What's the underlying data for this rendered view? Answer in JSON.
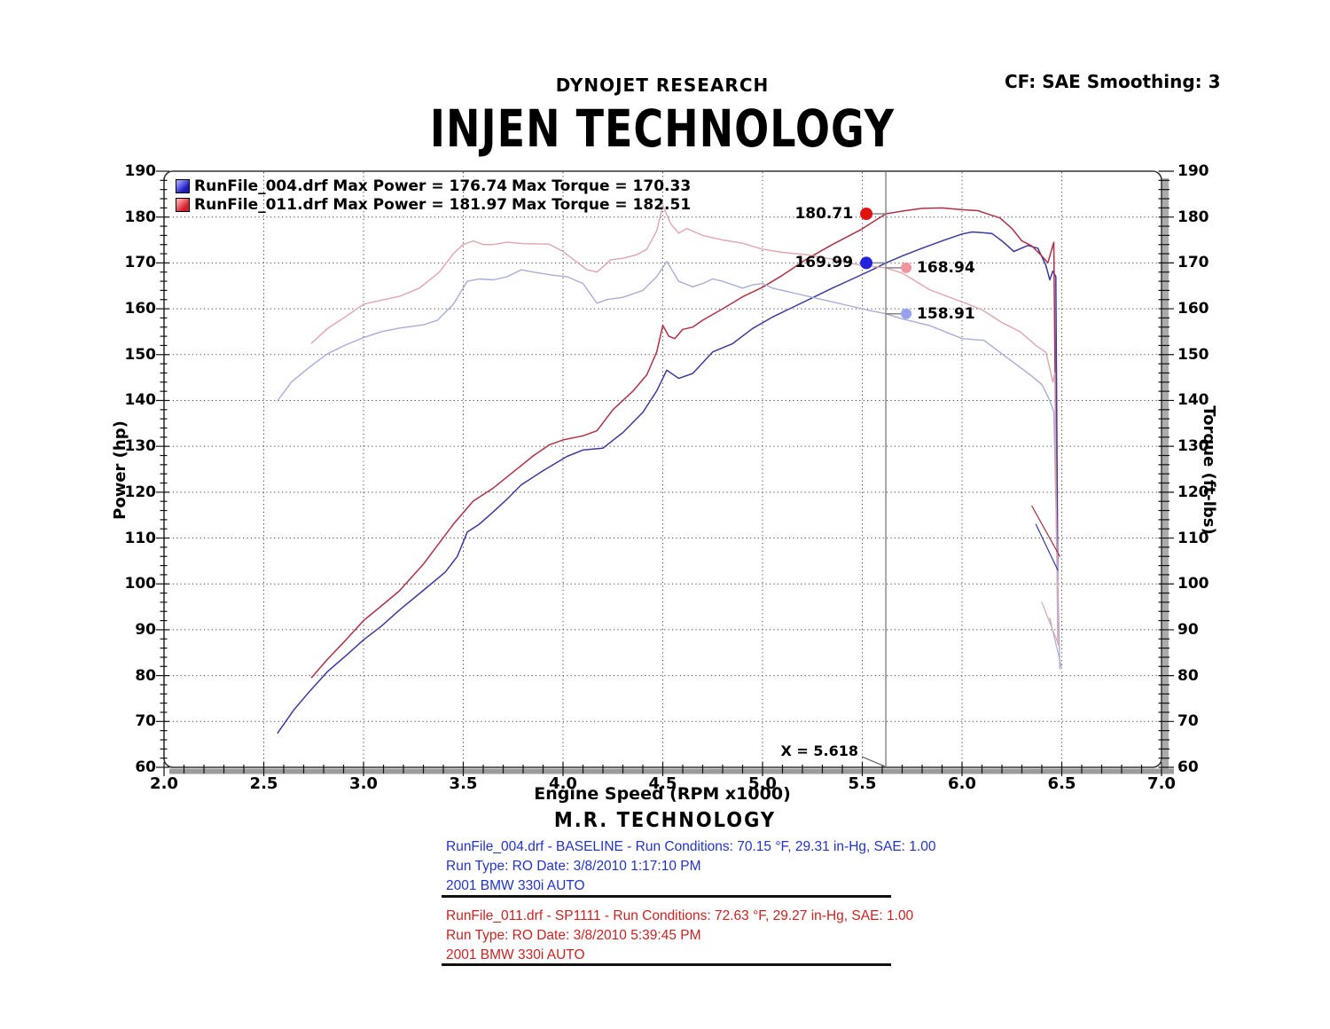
{
  "header": {
    "brand": "DYNOJET RESEARCH",
    "cf": "CF: SAE  Smoothing: 3",
    "title": "INJEN TECHNOLOGY"
  },
  "legend": {
    "rows": [
      {
        "label_left": "RunFile_004.drf Max Power = 176.74",
        "label_right": "Max Torque = 170.33",
        "swatch_from": "#9a9aff",
        "swatch_to": "#1c1cc4"
      },
      {
        "label_left": "RunFile_011.drf Max Power = 181.97",
        "label_right": "Max Torque = 182.51",
        "swatch_from": "#ffa2a2",
        "swatch_to": "#d41f2f"
      }
    ]
  },
  "cursor": {
    "label": "X = 5.618",
    "x": 5.618
  },
  "markers": [
    {
      "label": "180.71",
      "value": 180.71,
      "side": "left",
      "color": "#e01111",
      "r": 7
    },
    {
      "label": "169.99",
      "value": 169.99,
      "side": "left",
      "color": "#2222dd",
      "r": 7
    },
    {
      "label": "168.94",
      "value": 168.94,
      "side": "right",
      "color": "#f2949c",
      "r": 6
    },
    {
      "label": "158.91",
      "value": 158.91,
      "side": "right",
      "color": "#97a1ee",
      "r": 6
    }
  ],
  "footer": {
    "mr_title": "M.R. TECHNOLOGY",
    "baseline": {
      "color": "#2233cc",
      "lines": [
        "RunFile_004.drf - BASELINE  -  Run Conditions: 70.15 °F, 29.31 in-Hg, SAE: 1.00",
        "Run Type: RO  Date: 3/8/2010 1:17:10 PM",
        "2001 BMW 330i AUTO"
      ]
    },
    "modified": {
      "color": "#cc2222",
      "lines": [
        "RunFile_011.drf - SP1111  -  Run Conditions: 72.63 °F, 29.27 in-Hg, SAE: 1.00",
        "Run Type: RO  Date: 3/8/2010 5:39:45 PM",
        "2001 BMW 330i AUTO"
      ]
    }
  },
  "chart_data": {
    "type": "line",
    "title": "INJEN TECHNOLOGY",
    "xlabel": "Engine Speed (RPM x1000)",
    "ylabel_left": "Power (hp)",
    "ylabel_right": "Torque (ft-lbs)",
    "x_range": [
      2.0,
      7.0
    ],
    "y_range": [
      60,
      190
    ],
    "x_tick_labels": [
      "2.0",
      "2.5",
      "3.0",
      "3.5",
      "4.0",
      "4.5",
      "5.0",
      "5.5",
      "6.0",
      "6.5",
      "7.0"
    ],
    "y_tick_labels": [
      "60",
      "70",
      "80",
      "90",
      "100",
      "110",
      "120",
      "130",
      "140",
      "150",
      "160",
      "170",
      "180",
      "190"
    ],
    "x_minor_step": 0.1,
    "y_minor_step": 2,
    "grid": "dotted",
    "legend_position": "top-left",
    "cursor_x": 5.618,
    "series": [
      {
        "name": "power-baseline-004",
        "unit": "hp",
        "color": "#3a3aa0",
        "width": 1.5,
        "points": [
          [
            2.57,
            67.5
          ],
          [
            2.65,
            72.5
          ],
          [
            2.73,
            76.6
          ],
          [
            2.82,
            80.9
          ],
          [
            2.91,
            84.3
          ],
          [
            3.0,
            87.8
          ],
          [
            3.09,
            90.8
          ],
          [
            3.18,
            94.3
          ],
          [
            3.3,
            98.6
          ],
          [
            3.41,
            102.6
          ],
          [
            3.47,
            106.0
          ],
          [
            3.52,
            111.3
          ],
          [
            3.58,
            113.0
          ],
          [
            3.65,
            115.7
          ],
          [
            3.72,
            118.5
          ],
          [
            3.79,
            121.6
          ],
          [
            3.9,
            124.7
          ],
          [
            4.02,
            127.8
          ],
          [
            4.1,
            129.2
          ],
          [
            4.2,
            129.6
          ],
          [
            4.3,
            133.0
          ],
          [
            4.4,
            137.4
          ],
          [
            4.47,
            142.1
          ],
          [
            4.52,
            146.6
          ],
          [
            4.58,
            144.8
          ],
          [
            4.65,
            145.9
          ],
          [
            4.75,
            150.6
          ],
          [
            4.85,
            152.4
          ],
          [
            4.95,
            155.7
          ],
          [
            5.05,
            158.2
          ],
          [
            5.15,
            160.3
          ],
          [
            5.25,
            162.4
          ],
          [
            5.35,
            164.5
          ],
          [
            5.45,
            166.5
          ],
          [
            5.55,
            168.5
          ],
          [
            5.618,
            169.99
          ],
          [
            5.7,
            171.5
          ],
          [
            5.8,
            173.2
          ],
          [
            5.9,
            174.8
          ],
          [
            6.0,
            176.3
          ],
          [
            6.05,
            176.74
          ],
          [
            6.1,
            176.6
          ],
          [
            6.15,
            176.4
          ],
          [
            6.2,
            174.8
          ],
          [
            6.26,
            172.5
          ],
          [
            6.33,
            173.8
          ],
          [
            6.38,
            173.2
          ],
          [
            6.42,
            169.5
          ],
          [
            6.44,
            166.3
          ],
          [
            6.455,
            168.2
          ],
          [
            6.47,
            167.0
          ],
          [
            6.48,
            101.0
          ]
        ]
      },
      {
        "name": "power-modified-011",
        "unit": "hp",
        "color": "#b03043",
        "width": 1.5,
        "points": [
          [
            2.74,
            79.6
          ],
          [
            2.82,
            83.6
          ],
          [
            2.91,
            87.7
          ],
          [
            3.0,
            92.0
          ],
          [
            3.09,
            95.2
          ],
          [
            3.18,
            98.5
          ],
          [
            3.3,
            104.3
          ],
          [
            3.45,
            113.0
          ],
          [
            3.55,
            118.1
          ],
          [
            3.65,
            120.9
          ],
          [
            3.75,
            124.4
          ],
          [
            3.85,
            127.9
          ],
          [
            3.93,
            130.3
          ],
          [
            4.0,
            131.4
          ],
          [
            4.1,
            132.3
          ],
          [
            4.17,
            133.4
          ],
          [
            4.25,
            138.0
          ],
          [
            4.35,
            142.0
          ],
          [
            4.42,
            145.6
          ],
          [
            4.47,
            150.6
          ],
          [
            4.5,
            156.4
          ],
          [
            4.53,
            154.0
          ],
          [
            4.56,
            153.5
          ],
          [
            4.6,
            155.5
          ],
          [
            4.65,
            156.0
          ],
          [
            4.7,
            157.5
          ],
          [
            4.8,
            160.0
          ],
          [
            4.9,
            162.6
          ],
          [
            5.0,
            164.7
          ],
          [
            5.1,
            167.3
          ],
          [
            5.22,
            170.8
          ],
          [
            5.35,
            174.0
          ],
          [
            5.49,
            177.2
          ],
          [
            5.618,
            180.71
          ],
          [
            5.7,
            181.3
          ],
          [
            5.8,
            181.9
          ],
          [
            5.9,
            182.0
          ],
          [
            6.0,
            181.6
          ],
          [
            6.08,
            181.4
          ],
          [
            6.14,
            180.5
          ],
          [
            6.19,
            179.8
          ],
          [
            6.25,
            177.5
          ],
          [
            6.3,
            174.8
          ],
          [
            6.35,
            173.7
          ],
          [
            6.4,
            171.5
          ],
          [
            6.43,
            170.0
          ],
          [
            6.46,
            174.5
          ],
          [
            6.475,
            107.0
          ]
        ]
      },
      {
        "name": "torque-baseline-004",
        "unit": "ft-lbs",
        "color": "#a6aed8",
        "width": 1.4,
        "points": [
          [
            2.57,
            140.0
          ],
          [
            2.64,
            144.1
          ],
          [
            2.73,
            147.3
          ],
          [
            2.82,
            150.2
          ],
          [
            2.91,
            152.1
          ],
          [
            3.0,
            153.7
          ],
          [
            3.09,
            155.0
          ],
          [
            3.18,
            155.8
          ],
          [
            3.25,
            156.2
          ],
          [
            3.3,
            156.5
          ],
          [
            3.37,
            157.5
          ],
          [
            3.45,
            161.0
          ],
          [
            3.52,
            166.0
          ],
          [
            3.58,
            166.5
          ],
          [
            3.65,
            166.3
          ],
          [
            3.72,
            167.0
          ],
          [
            3.79,
            168.5
          ],
          [
            3.85,
            168.0
          ],
          [
            3.95,
            167.3
          ],
          [
            4.02,
            167.0
          ],
          [
            4.1,
            165.5
          ],
          [
            4.17,
            161.2
          ],
          [
            4.22,
            162.0
          ],
          [
            4.3,
            162.5
          ],
          [
            4.4,
            164.0
          ],
          [
            4.47,
            167.0
          ],
          [
            4.52,
            170.33
          ],
          [
            4.58,
            166.0
          ],
          [
            4.65,
            164.8
          ],
          [
            4.7,
            165.5
          ],
          [
            4.75,
            166.5
          ],
          [
            4.8,
            166.0
          ],
          [
            4.9,
            164.5
          ],
          [
            4.95,
            165.2
          ],
          [
            5.0,
            165.5
          ],
          [
            5.05,
            164.5
          ],
          [
            5.15,
            163.5
          ],
          [
            5.25,
            162.5
          ],
          [
            5.35,
            161.5
          ],
          [
            5.45,
            160.5
          ],
          [
            5.55,
            159.5
          ],
          [
            5.618,
            158.91
          ],
          [
            5.7,
            157.8
          ],
          [
            5.84,
            156.3
          ],
          [
            6.0,
            153.5
          ],
          [
            6.11,
            153.1
          ],
          [
            6.23,
            149.2
          ],
          [
            6.35,
            145.3
          ],
          [
            6.4,
            143.5
          ],
          [
            6.44,
            140.0
          ],
          [
            6.46,
            137.5
          ],
          [
            6.49,
            81.5
          ]
        ]
      },
      {
        "name": "torque-modified-011",
        "unit": "ft-lbs",
        "color": "#dfa6ad",
        "width": 1.4,
        "points": [
          [
            2.74,
            152.5
          ],
          [
            2.82,
            155.7
          ],
          [
            2.91,
            158.3
          ],
          [
            3.0,
            161.0
          ],
          [
            3.09,
            161.9
          ],
          [
            3.18,
            162.7
          ],
          [
            3.28,
            164.5
          ],
          [
            3.38,
            168.0
          ],
          [
            3.45,
            172.0
          ],
          [
            3.5,
            174.0
          ],
          [
            3.55,
            174.8
          ],
          [
            3.6,
            174.0
          ],
          [
            3.65,
            174.0
          ],
          [
            3.72,
            174.5
          ],
          [
            3.8,
            174.2
          ],
          [
            3.93,
            174.1
          ],
          [
            4.0,
            172.5
          ],
          [
            4.06,
            170.5
          ],
          [
            4.12,
            168.5
          ],
          [
            4.17,
            168.0
          ],
          [
            4.24,
            170.7
          ],
          [
            4.3,
            171.0
          ],
          [
            4.37,
            171.8
          ],
          [
            4.42,
            173.0
          ],
          [
            4.47,
            177.0
          ],
          [
            4.5,
            182.51
          ],
          [
            4.54,
            178.5
          ],
          [
            4.58,
            176.5
          ],
          [
            4.62,
            177.5
          ],
          [
            4.7,
            176.0
          ],
          [
            4.8,
            175.0
          ],
          [
            4.9,
            174.3
          ],
          [
            5.0,
            173.0
          ],
          [
            5.1,
            172.3
          ],
          [
            5.22,
            171.8
          ],
          [
            5.35,
            170.8
          ],
          [
            5.49,
            169.5
          ],
          [
            5.618,
            168.94
          ],
          [
            5.7,
            167.8
          ],
          [
            5.84,
            164.1
          ],
          [
            6.0,
            161.5
          ],
          [
            6.1,
            159.8
          ],
          [
            6.2,
            157.0
          ],
          [
            6.29,
            155.0
          ],
          [
            6.37,
            152.0
          ],
          [
            6.42,
            150.5
          ],
          [
            6.44,
            147.0
          ],
          [
            6.455,
            144.0
          ],
          [
            6.465,
            146.0
          ],
          [
            6.48,
            87.0
          ]
        ]
      },
      {
        "name": "power-baseline-rundown-tail",
        "unit": "hp",
        "color": "#3a3aa0",
        "width": 1.2,
        "points": [
          [
            6.37,
            113.0
          ],
          [
            6.48,
            103.0
          ]
        ]
      },
      {
        "name": "power-modified-rundown-tail",
        "unit": "hp",
        "color": "#b03043",
        "width": 1.2,
        "points": [
          [
            6.35,
            117.0
          ],
          [
            6.49,
            106.0
          ]
        ]
      },
      {
        "name": "torque-baseline-rundown-tail",
        "unit": "ft-lbs",
        "color": "#a6aed8",
        "width": 1.2,
        "points": [
          [
            6.44,
            92.5
          ],
          [
            6.5,
            81.5
          ]
        ]
      },
      {
        "name": "torque-modified-rundown-tail",
        "unit": "ft-lbs",
        "color": "#dfa6ad",
        "width": 1.2,
        "points": [
          [
            6.4,
            96.0
          ],
          [
            6.49,
            86.0
          ]
        ]
      }
    ]
  }
}
